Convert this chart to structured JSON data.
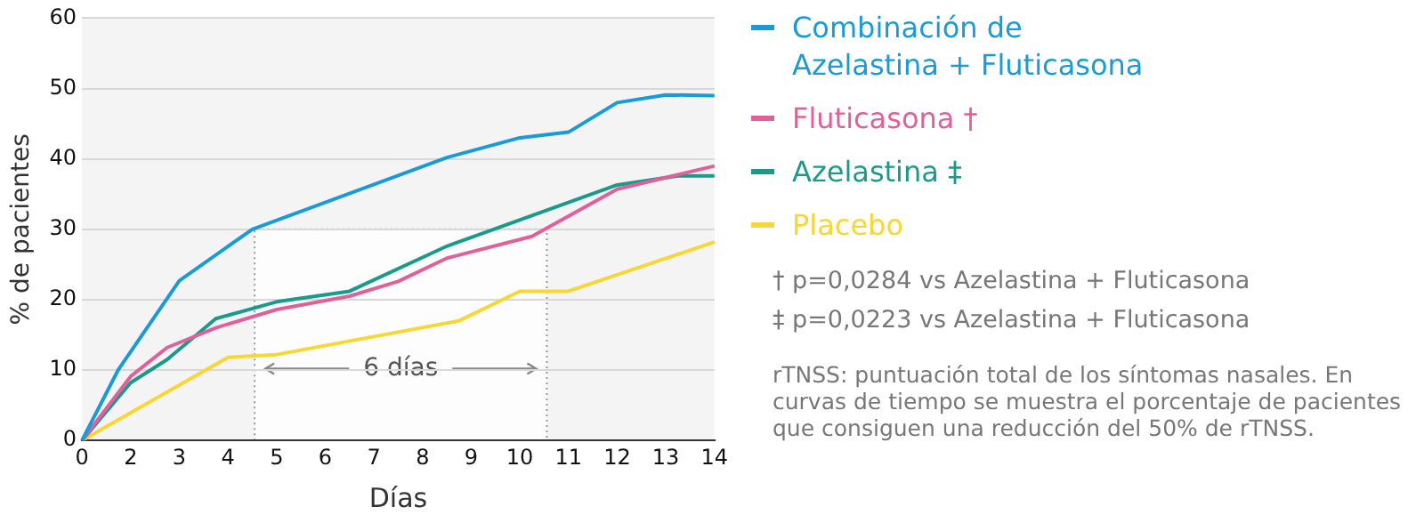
{
  "chart_data": {
    "type": "line",
    "xlabel": "Días",
    "ylabel": "% de pacientes",
    "categories": [
      "0",
      null,
      null,
      null,
      "2",
      null,
      null,
      null,
      "3",
      null,
      null,
      null,
      "4",
      null,
      null,
      null,
      "5",
      null,
      null,
      null,
      "6",
      null,
      null,
      null,
      "7",
      null,
      null,
      null,
      "8",
      null,
      null,
      null,
      "9",
      null,
      null,
      null,
      "10",
      null,
      null,
      null,
      "11",
      null,
      null,
      null,
      "12",
      null,
      null,
      null,
      "13",
      null,
      null,
      null,
      "14"
    ],
    "ylim": [
      0,
      60
    ],
    "yticks": [
      0,
      10,
      20,
      30,
      40,
      50,
      60
    ],
    "grid": "y",
    "legend": "right",
    "marker": "none",
    "line_style": "solid",
    "series": [
      {
        "name": "Combinación de Azelastina + Fluticasona",
        "color": "#1a9ad6",
        "values": [
          0,
          null,
          null,
          10.1,
          null,
          null,
          null,
          null,
          22.7,
          null,
          null,
          null,
          null,
          null,
          30,
          null,
          null,
          null,
          null,
          null,
          null,
          null,
          null,
          null,
          null,
          null,
          null,
          null,
          null,
          null,
          40.2,
          null,
          null,
          null,
          null,
          null,
          43,
          null,
          null,
          null,
          43.8,
          null,
          null,
          null,
          48,
          null,
          null,
          null,
          49.1,
          null,
          null,
          null,
          49
        ]
      },
      {
        "name": "Fluticasona †",
        "color": "#e0609a",
        "values": [
          0,
          null,
          null,
          null,
          9.1,
          null,
          null,
          13.2,
          null,
          null,
          null,
          16,
          null,
          null,
          null,
          null,
          18.6,
          null,
          null,
          null,
          null,
          null,
          20.5,
          null,
          null,
          null,
          22.6,
          null,
          null,
          null,
          25.9,
          null,
          null,
          null,
          null,
          null,
          null,
          29,
          null,
          null,
          null,
          null,
          null,
          null,
          35.7,
          null,
          null,
          null,
          null,
          null,
          null,
          null,
          39
        ]
      },
      {
        "name": "Azelastina ‡",
        "color": "#1a9a8a",
        "values": [
          0,
          null,
          null,
          null,
          8.2,
          null,
          null,
          11.5,
          null,
          null,
          null,
          17.3,
          null,
          null,
          null,
          null,
          19.7,
          null,
          null,
          null,
          null,
          null,
          21.2,
          null,
          null,
          null,
          null,
          null,
          null,
          null,
          27.6,
          null,
          null,
          null,
          null,
          null,
          null,
          null,
          null,
          null,
          null,
          null,
          null,
          null,
          36.3,
          null,
          null,
          null,
          null,
          37.6,
          null,
          null,
          37.6
        ]
      },
      {
        "name": "Placebo",
        "color": "#f7d635",
        "values": [
          0,
          null,
          null,
          null,
          null,
          null,
          null,
          null,
          null,
          null,
          null,
          null,
          11.8,
          null,
          null,
          null,
          12.2,
          null,
          null,
          null,
          null,
          null,
          null,
          null,
          null,
          null,
          null,
          null,
          null,
          null,
          null,
          17,
          null,
          null,
          null,
          null,
          21.2,
          null,
          null,
          null,
          21.2,
          null,
          null,
          null,
          null,
          null,
          null,
          null,
          null,
          null,
          null,
          null,
          28.2
        ]
      }
    ],
    "annotations": [
      "6 días",
      "† p=0,0284 vs Azelastina + Fluticasona",
      "‡ p=0,0223 vs Azelastina + Fluticasona",
      "rTNSS: puntuación total de los síntomas nasales. En curvas de tiempo se muestra el porcentaje de pacientes que consiguen una reducción del 50% de rTNSS."
    ]
  }
}
